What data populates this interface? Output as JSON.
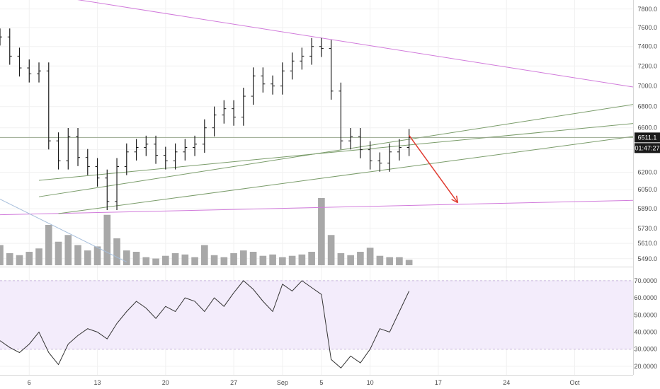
{
  "chart_data": [
    {
      "type": "bar",
      "subtype": "ohlc-daily-price",
      "y_scale": "log",
      "ylim": [
        5440,
        7900
      ],
      "y_ticks": [
        "7800.0",
        "7600.0",
        "7400.0",
        "7200.0",
        "7000.0",
        "6800.0",
        "6600.0",
        "6400.0",
        "6200.0",
        "6050.0",
        "5890.0",
        "5730.0",
        "5610.0",
        "5490.0"
      ],
      "x_tick_labels": [
        "6",
        "13",
        "20",
        "27",
        "Sep",
        "5",
        "10",
        "17",
        "24",
        "Oct"
      ],
      "x_ticks": [
        "2018-08-06",
        "2018-08-13",
        "2018-08-20",
        "2018-08-27",
        "2018-09-01",
        "2018-09-05",
        "2018-09-10",
        "2018-09-17",
        "2018-09-24",
        "2018-10-01"
      ],
      "x_range": [
        "2018-08-03",
        "2018-10-07"
      ],
      "last_price": "6511.1",
      "countdown": "01:47:27",
      "price_series": [
        [
          "2018-08-03",
          7500
        ],
        [
          "2018-08-04",
          7300
        ],
        [
          "2018-08-05",
          7180
        ],
        [
          "2018-08-06",
          7120
        ],
        [
          "2018-08-07",
          7150
        ],
        [
          "2018-08-08",
          6480
        ],
        [
          "2018-08-09",
          6300
        ],
        [
          "2018-08-10",
          6520
        ],
        [
          "2018-08-11",
          6330
        ],
        [
          "2018-08-12",
          6250
        ],
        [
          "2018-08-13",
          6150
        ],
        [
          "2018-08-14",
          5950
        ],
        [
          "2018-08-15",
          6250
        ],
        [
          "2018-08-16",
          6380
        ],
        [
          "2018-08-17",
          6420
        ],
        [
          "2018-08-18",
          6450
        ],
        [
          "2018-08-19",
          6350
        ],
        [
          "2018-08-20",
          6300
        ],
        [
          "2018-08-21",
          6380
        ],
        [
          "2018-08-22",
          6420
        ],
        [
          "2018-08-23",
          6450
        ],
        [
          "2018-08-24",
          6600
        ],
        [
          "2018-08-25",
          6720
        ],
        [
          "2018-08-26",
          6780
        ],
        [
          "2018-08-27",
          6700
        ],
        [
          "2018-08-28",
          6900
        ],
        [
          "2018-08-29",
          7100
        ],
        [
          "2018-08-30",
          7020
        ],
        [
          "2018-08-31",
          7000
        ],
        [
          "2018-09-01",
          7150
        ],
        [
          "2018-09-02",
          7250
        ],
        [
          "2018-09-03",
          7300
        ],
        [
          "2018-09-04",
          7400
        ],
        [
          "2018-09-05",
          7380
        ],
        [
          "2018-09-06",
          6950
        ],
        [
          "2018-09-07",
          6480
        ],
        [
          "2018-09-08",
          6520
        ],
        [
          "2018-09-09",
          6400
        ],
        [
          "2018-09-10",
          6300
        ],
        [
          "2018-09-11",
          6280
        ],
        [
          "2018-09-12",
          6380
        ],
        [
          "2018-09-13",
          6420
        ],
        [
          "2018-09-14",
          6511.1
        ]
      ],
      "volume": [
        [
          "2018-08-03",
          30
        ],
        [
          "2018-08-04",
          18
        ],
        [
          "2018-08-05",
          15
        ],
        [
          "2018-08-06",
          20
        ],
        [
          "2018-08-07",
          25
        ],
        [
          "2018-08-08",
          60
        ],
        [
          "2018-08-09",
          35
        ],
        [
          "2018-08-10",
          45
        ],
        [
          "2018-08-11",
          30
        ],
        [
          "2018-08-12",
          22
        ],
        [
          "2018-08-13",
          28
        ],
        [
          "2018-08-14",
          75
        ],
        [
          "2018-08-15",
          40
        ],
        [
          "2018-08-16",
          22
        ],
        [
          "2018-08-17",
          20
        ],
        [
          "2018-08-18",
          12
        ],
        [
          "2018-08-19",
          10
        ],
        [
          "2018-08-20",
          14
        ],
        [
          "2018-08-21",
          18
        ],
        [
          "2018-08-22",
          16
        ],
        [
          "2018-08-23",
          12
        ],
        [
          "2018-08-24",
          30
        ],
        [
          "2018-08-25",
          15
        ],
        [
          "2018-08-26",
          12
        ],
        [
          "2018-08-27",
          18
        ],
        [
          "2018-08-28",
          22
        ],
        [
          "2018-08-29",
          20
        ],
        [
          "2018-08-30",
          14
        ],
        [
          "2018-08-31",
          16
        ],
        [
          "2018-09-01",
          12
        ],
        [
          "2018-09-02",
          14
        ],
        [
          "2018-09-03",
          16
        ],
        [
          "2018-09-04",
          20
        ],
        [
          "2018-09-05",
          100
        ],
        [
          "2018-09-06",
          45
        ],
        [
          "2018-09-07",
          18
        ],
        [
          "2018-09-08",
          15
        ],
        [
          "2018-09-09",
          20
        ],
        [
          "2018-09-10",
          26
        ],
        [
          "2018-09-11",
          14
        ],
        [
          "2018-09-12",
          12
        ],
        [
          "2018-09-13",
          12
        ],
        [
          "2018-09-14",
          8
        ]
      ],
      "trendlines": [
        {
          "color": "#d17bdb",
          "points": [
            [
              "2018-08-10",
              7920
            ],
            [
              "2018-10-07",
              6990
            ]
          ]
        },
        {
          "color": "#d17bdb",
          "points": [
            [
              "2018-08-03",
              5840
            ],
            [
              "2018-10-07",
              5960
            ]
          ]
        },
        {
          "color": "#7a9c6a",
          "points": [
            [
              "2018-08-07",
              5990
            ],
            [
              "2018-10-07",
              6820
            ]
          ]
        },
        {
          "color": "#7a9c6a",
          "points": [
            [
              "2018-08-07",
              6130
            ],
            [
              "2018-10-07",
              6640
            ]
          ]
        },
        {
          "color": "#7a9c6a",
          "points": [
            [
              "2018-08-09",
              5850
            ],
            [
              "2018-10-07",
              6520
            ]
          ]
        },
        {
          "color": "#a6bedb",
          "points": [
            [
              "2018-08-03",
              5970
            ],
            [
              "2018-08-16",
              5465
            ]
          ]
        }
      ],
      "projection_arrow": {
        "color": "#e03c31",
        "from": [
          "2018-09-14",
          6530
        ],
        "to": [
          "2018-09-19",
          5940
        ]
      },
      "grid": true
    },
    {
      "type": "line",
      "subtype": "rsi",
      "ylim": [
        15,
        77
      ],
      "y_ticks": [
        "70.0000",
        "60.0000",
        "50.0000",
        "40.0000",
        "30.0000",
        "20.0000"
      ],
      "band": [
        30,
        70
      ],
      "values": [
        [
          "2018-08-03",
          35
        ],
        [
          "2018-08-04",
          31
        ],
        [
          "2018-08-05",
          28
        ],
        [
          "2018-08-06",
          33
        ],
        [
          "2018-08-07",
          40
        ],
        [
          "2018-08-08",
          28
        ],
        [
          "2018-08-09",
          21
        ],
        [
          "2018-08-10",
          33
        ],
        [
          "2018-08-11",
          38
        ],
        [
          "2018-08-12",
          42
        ],
        [
          "2018-08-13",
          40
        ],
        [
          "2018-08-14",
          36
        ],
        [
          "2018-08-15",
          45
        ],
        [
          "2018-08-16",
          52
        ],
        [
          "2018-08-17",
          58
        ],
        [
          "2018-08-18",
          54
        ],
        [
          "2018-08-19",
          48
        ],
        [
          "2018-08-20",
          55
        ],
        [
          "2018-08-21",
          52
        ],
        [
          "2018-08-22",
          60
        ],
        [
          "2018-08-23",
          58
        ],
        [
          "2018-08-24",
          52
        ],
        [
          "2018-08-25",
          60
        ],
        [
          "2018-08-26",
          55
        ],
        [
          "2018-08-27",
          63
        ],
        [
          "2018-08-28",
          70
        ],
        [
          "2018-08-29",
          65
        ],
        [
          "2018-08-30",
          58
        ],
        [
          "2018-08-31",
          52
        ],
        [
          "2018-09-01",
          68
        ],
        [
          "2018-09-02",
          64
        ],
        [
          "2018-09-03",
          70
        ],
        [
          "2018-09-04",
          66
        ],
        [
          "2018-09-05",
          62
        ],
        [
          "2018-09-06",
          24
        ],
        [
          "2018-09-07",
          19
        ],
        [
          "2018-09-08",
          26
        ],
        [
          "2018-09-09",
          22
        ],
        [
          "2018-09-10",
          30
        ],
        [
          "2018-09-11",
          42
        ],
        [
          "2018-09-12",
          40
        ],
        [
          "2018-09-13",
          52
        ],
        [
          "2018-09-14",
          64
        ]
      ]
    }
  ],
  "colors": {
    "price_bars": "#1a1a1a",
    "volume_bars": "#a8a8a8",
    "rsi_line": "#333333",
    "rsi_band_fill": "#f3ecfb",
    "last_price_tag": "#1a1a1a",
    "grid": "#f1f1f1",
    "axis_text": "#4a4a4a"
  }
}
